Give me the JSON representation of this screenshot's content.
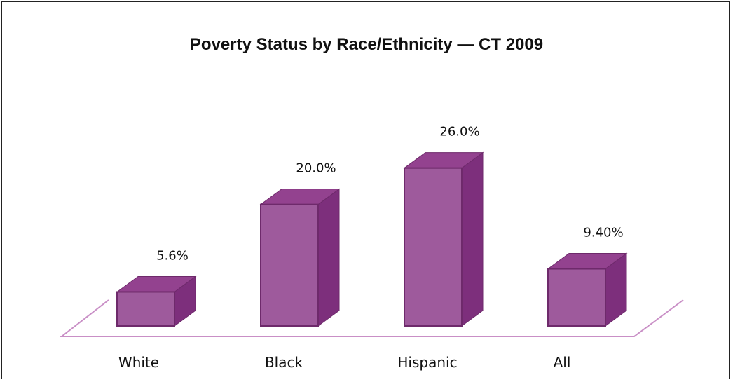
{
  "chart_data": {
    "type": "bar",
    "title": "Poverty Status by Race/Ethnicity — CT 2009",
    "categories": [
      "White",
      "Black",
      "Hispanic",
      "All"
    ],
    "values": [
      5.6,
      20.0,
      26.0,
      9.4
    ],
    "value_labels": [
      "5.6%",
      "20.0%",
      "26.0%",
      "9.40%"
    ],
    "ylim": [
      0,
      30
    ],
    "grid": false,
    "legend": "none",
    "colors": {
      "front": "#9e5a9c",
      "top": "#93428f",
      "side": "#7d2f7c",
      "edge": "#6e2a6b",
      "floor": "#c98fc6"
    }
  }
}
